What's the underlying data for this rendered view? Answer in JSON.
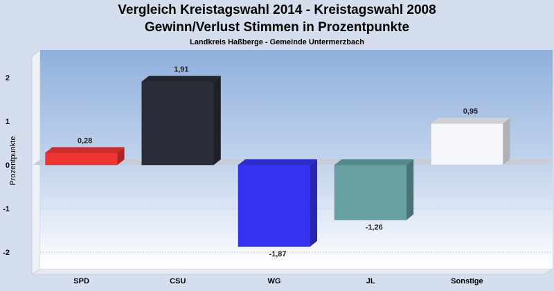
{
  "chart_data": {
    "type": "bar",
    "title": "Vergleich Kreistagswahl 2014 - Kreistagswahl 2008",
    "subtitle": "Gewinn/Verlust Stimmen in Prozentpunkte",
    "subtitle2": "Landkreis Haßberge - Gemeinde Untermerzbach",
    "ylabel": "Prozentpunkte",
    "categories": [
      "SPD",
      "CSU",
      "WG",
      "JL",
      "Sonstige"
    ],
    "values": [
      0.28,
      1.91,
      -1.87,
      -1.26,
      0.95
    ],
    "value_labels": [
      "0,28",
      "1,91",
      "-1,87",
      "-1,26",
      "0,95"
    ],
    "colors": [
      "#f03434",
      "#2a2d37",
      "#3434f0",
      "#66a0a0",
      "#f4f6fb"
    ],
    "yticks": [
      2,
      1,
      0,
      -1,
      -2
    ],
    "ytick_labels": [
      "2",
      "1",
      "0",
      "-1",
      "-2"
    ],
    "ylim": [
      -2.3,
      2.5
    ],
    "grid": true,
    "legend": "none"
  }
}
